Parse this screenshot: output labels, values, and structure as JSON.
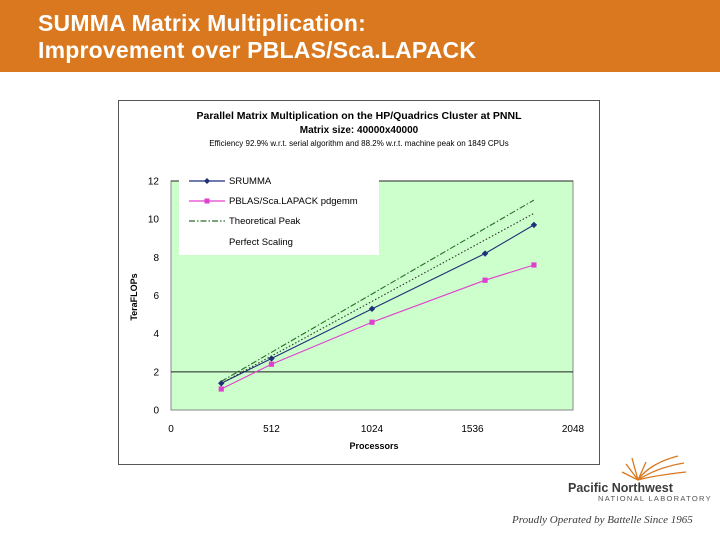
{
  "slide": {
    "title_lines": [
      "SUMMA Matrix Multiplication:",
      "Improvement over PBLAS/Sca.LAPACK"
    ]
  },
  "logo": {
    "name": "Pacific Northwest",
    "subname": "NATIONAL LABORATORY",
    "tagline": "Proudly Operated by Battelle Since 1965"
  },
  "colors": {
    "header": "#d9781e",
    "plot_bg": "#ccffcc",
    "srumma": "#1f2f7a",
    "pblas": "#e040d0",
    "theory": "#2a6a2a"
  },
  "chart_data": {
    "type": "line",
    "title": "Parallel Matrix Multiplication on the HP/Quadrics Cluster at PNNL",
    "subtitle": "Matrix size: 40000x40000",
    "note": "Efficiency 92.9% w.r.t. serial algorithm and 88.2% w.r.t. machine peak on 1849 CPUs",
    "xlabel": "Processors",
    "ylabel": "TeraFLOPs",
    "xlim": [
      0,
      2048
    ],
    "ylim": [
      0,
      12
    ],
    "xticks": [
      "0",
      "512",
      "1024",
      "1536",
      "2048"
    ],
    "yticks": [
      "0",
      "2",
      "4",
      "6",
      "8",
      "10",
      "12"
    ],
    "hlines": [
      2,
      12
    ],
    "legend_position": "top-left",
    "series": [
      {
        "name": "SRUMMA",
        "style": "solid-diamond",
        "color": "#1f2f7a",
        "x": [
          256,
          512,
          1024,
          1600,
          1849
        ],
        "y": [
          1.4,
          2.7,
          5.3,
          8.2,
          9.7
        ]
      },
      {
        "name": "PBLAS/Sca.LAPACK pdgemm",
        "style": "solid-square",
        "color": "#e040d0",
        "x": [
          256,
          512,
          1024,
          1600,
          1849
        ],
        "y": [
          1.1,
          2.4,
          4.6,
          6.8,
          7.6
        ]
      },
      {
        "name": "Theoretical Peak",
        "style": "dashdot",
        "color": "#2a6a2a",
        "x": [
          256,
          1849
        ],
        "y": [
          1.5,
          11.0
        ]
      },
      {
        "name": "Perfect Scaling",
        "style": "dotted",
        "color": "#333333",
        "x": [
          256,
          1849
        ],
        "y": [
          1.4,
          10.3
        ]
      }
    ]
  }
}
